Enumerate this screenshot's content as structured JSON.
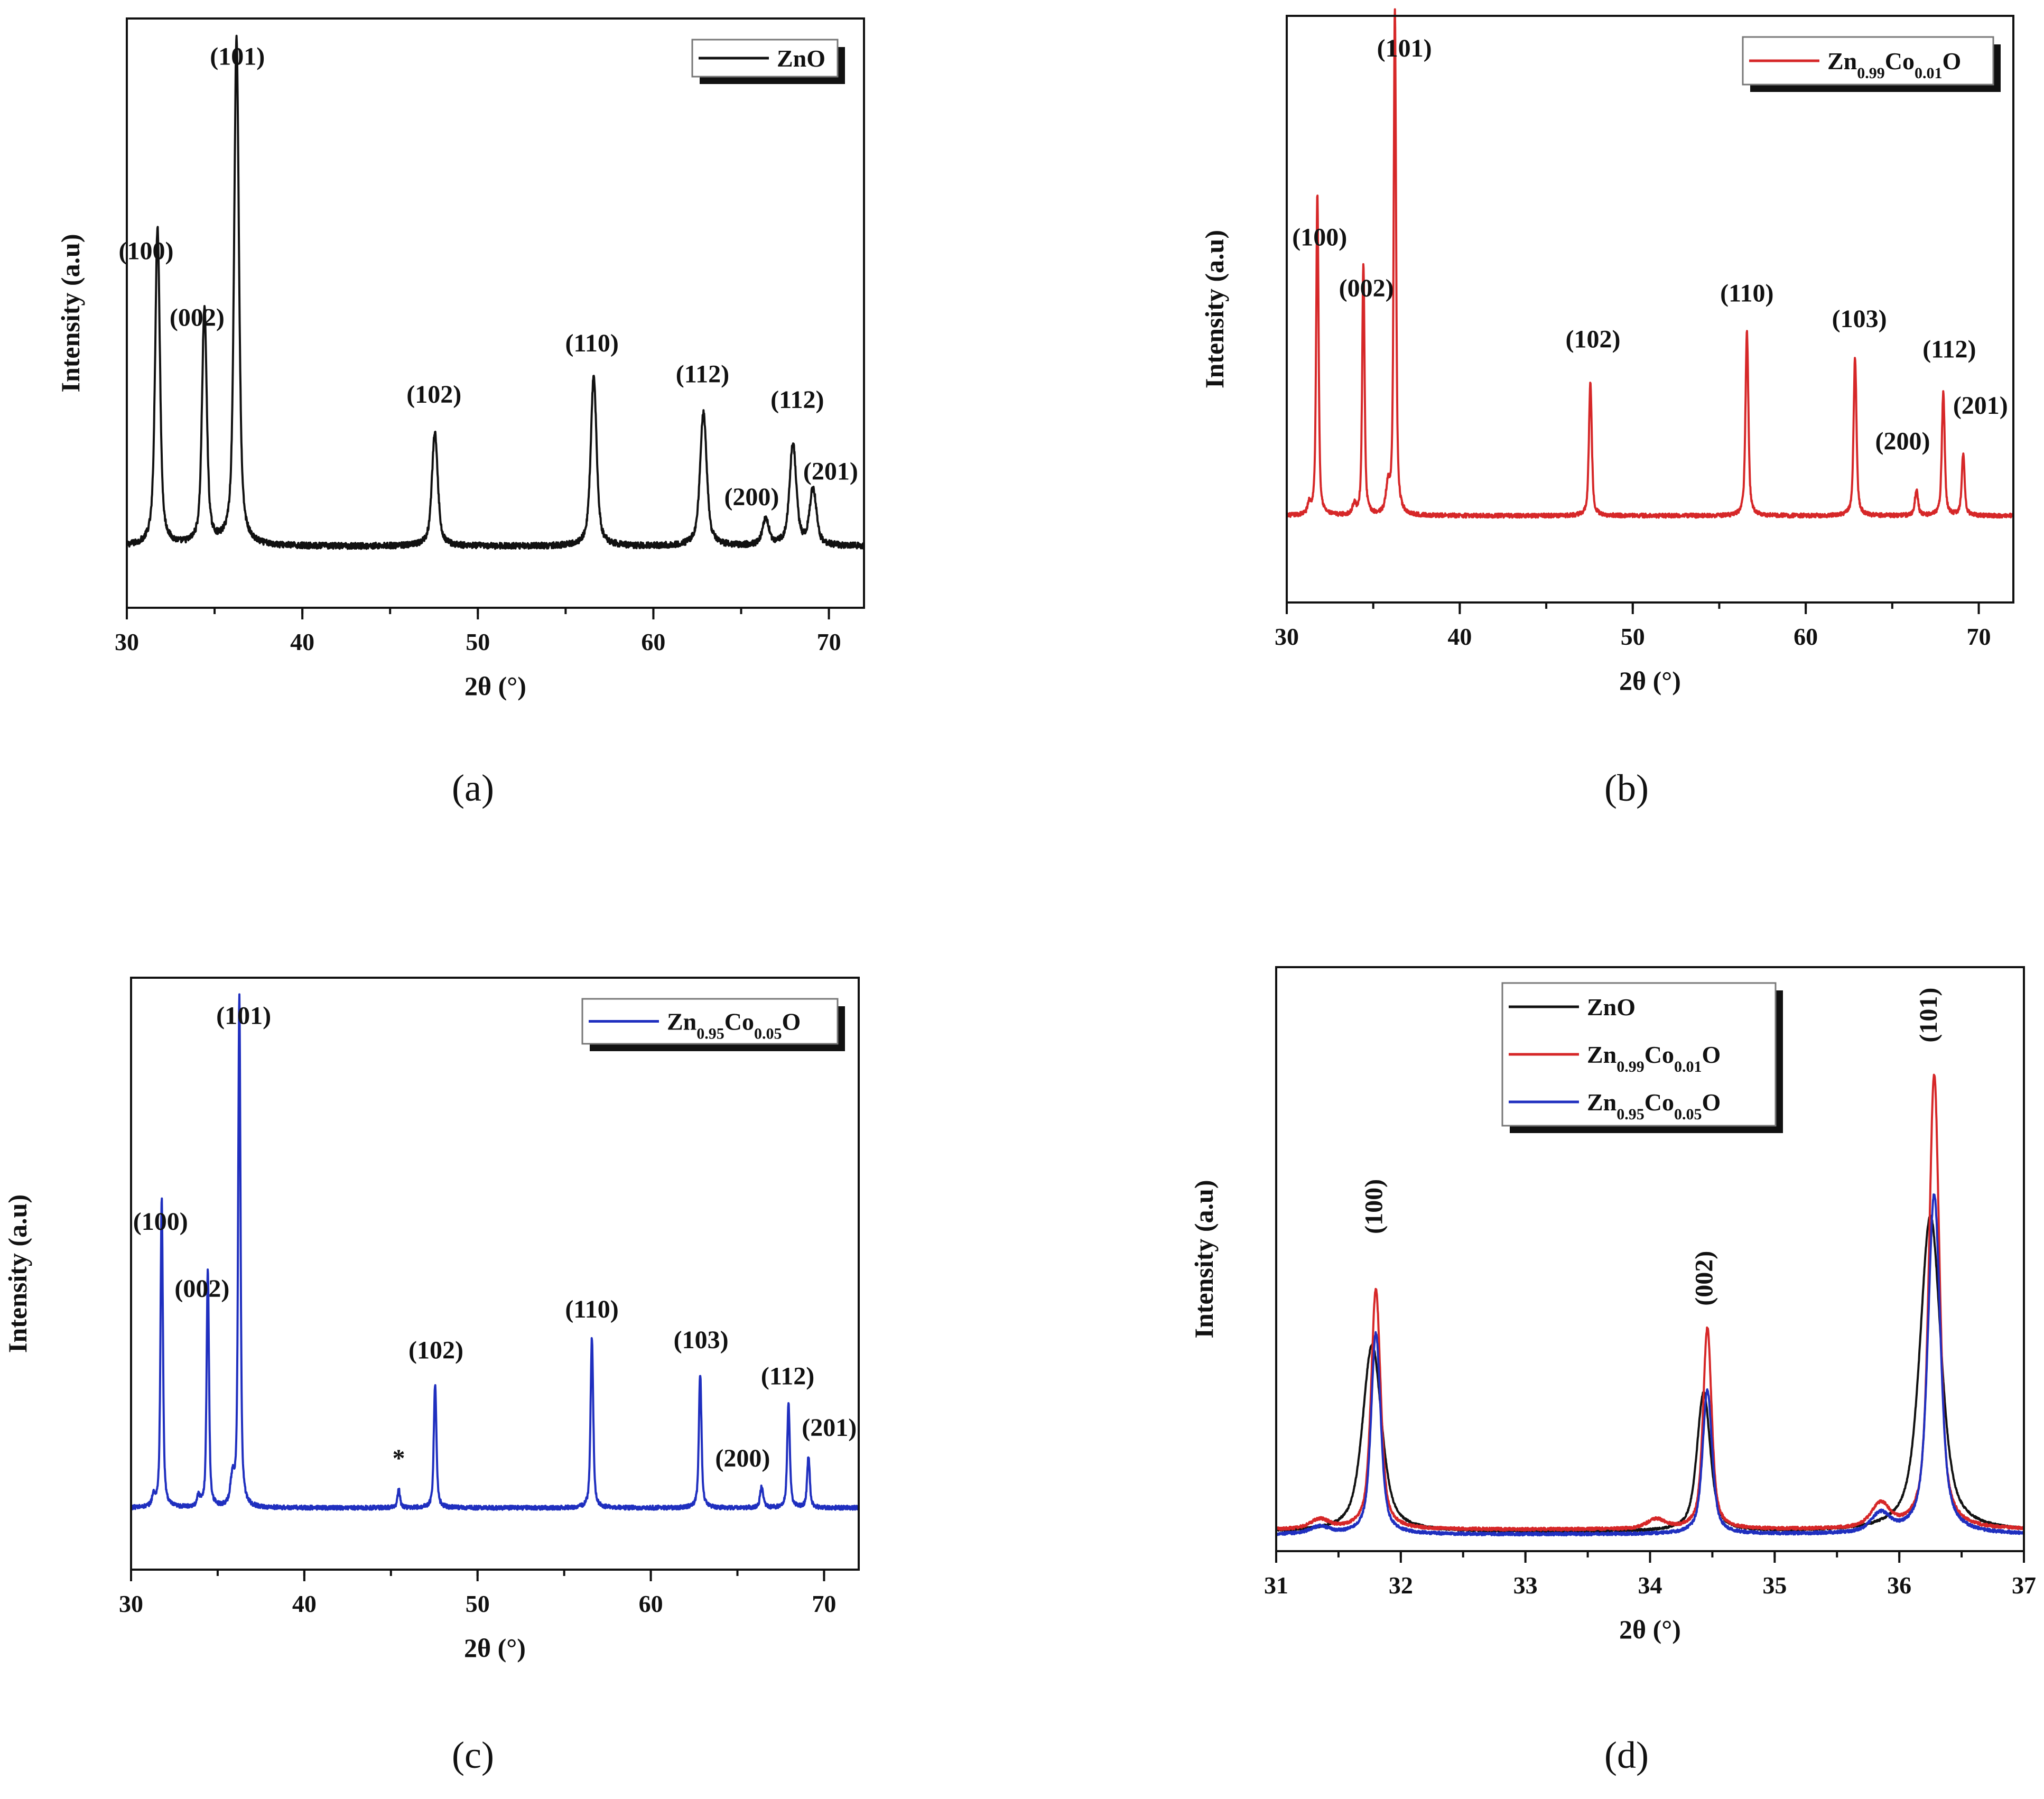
{
  "figure": {
    "background": "#ffffff",
    "colors": {
      "black": "#111111",
      "red": "#d62728",
      "blue": "#1f2fbf"
    }
  },
  "chart_data": [
    {
      "id": "a",
      "type": "line",
      "caption": "(a)",
      "xlabel": "2θ (°)",
      "ylabel": "Intensity (a.u)",
      "xlim": [
        30,
        72
      ],
      "ylim": [
        0,
        1.15
      ],
      "xticks": [
        30,
        40,
        50,
        60,
        70
      ],
      "legend": {
        "location": "top-right",
        "entries": [
          {
            "name": "ZnO",
            "color": "#111111"
          }
        ]
      },
      "series": [
        {
          "name": "ZnO",
          "color": "#111111",
          "baseline": 0.12,
          "noise": 0.006,
          "peaks": [
            {
              "x": 31.75,
              "h": 0.62,
              "w": 0.18
            },
            {
              "x": 34.42,
              "h": 0.46,
              "w": 0.18
            },
            {
              "x": 36.25,
              "h": 0.99,
              "w": 0.18
            },
            {
              "x": 47.55,
              "h": 0.22,
              "w": 0.22
            },
            {
              "x": 56.6,
              "h": 0.33,
              "w": 0.22
            },
            {
              "x": 62.85,
              "h": 0.26,
              "w": 0.25
            },
            {
              "x": 66.4,
              "h": 0.05,
              "w": 0.25
            },
            {
              "x": 67.95,
              "h": 0.2,
              "w": 0.25
            },
            {
              "x": 69.1,
              "h": 0.11,
              "w": 0.25
            }
          ]
        }
      ],
      "annotations": [
        {
          "text": "(101)",
          "x": 36.3,
          "y": 1.06
        },
        {
          "text": "(100)",
          "x": 31.1,
          "y": 0.68
        },
        {
          "text": "(002)",
          "x": 34.0,
          "y": 0.55
        },
        {
          "text": "(102)",
          "x": 47.5,
          "y": 0.4
        },
        {
          "text": "(110)",
          "x": 56.5,
          "y": 0.5
        },
        {
          "text": "(112)",
          "x": 62.8,
          "y": 0.44
        },
        {
          "text": "(112)",
          "x": 68.2,
          "y": 0.39
        },
        {
          "text": "(200)",
          "x": 65.6,
          "y": 0.2
        },
        {
          "text": "(201)",
          "x": 70.1,
          "y": 0.25
        }
      ]
    },
    {
      "id": "b",
      "type": "line",
      "caption": "(b)",
      "xlabel": "2θ (°)",
      "ylabel": "Intensity (a.u)",
      "xlim": [
        30,
        72
      ],
      "ylim": [
        0,
        1.15
      ],
      "xticks": [
        30,
        40,
        50,
        60,
        70
      ],
      "legend": {
        "location": "top-right",
        "entries": [
          {
            "name": "Zn0.99Co0.01O",
            "color": "#d62728"
          }
        ]
      },
      "series": [
        {
          "name": "Zn0.99Co0.01O",
          "color": "#d62728",
          "baseline": 0.17,
          "noise": 0.004,
          "peaks": [
            {
              "x": 31.3,
              "h": 0.02,
              "w": 0.12
            },
            {
              "x": 31.77,
              "h": 0.63,
              "w": 0.09
            },
            {
              "x": 33.9,
              "h": 0.02,
              "w": 0.12
            },
            {
              "x": 34.43,
              "h": 0.49,
              "w": 0.09
            },
            {
              "x": 35.85,
              "h": 0.05,
              "w": 0.15
            },
            {
              "x": 36.25,
              "h": 0.99,
              "w": 0.09
            },
            {
              "x": 47.55,
              "h": 0.26,
              "w": 0.11
            },
            {
              "x": 56.6,
              "h": 0.36,
              "w": 0.11
            },
            {
              "x": 62.85,
              "h": 0.31,
              "w": 0.11
            },
            {
              "x": 66.4,
              "h": 0.05,
              "w": 0.12
            },
            {
              "x": 67.95,
              "h": 0.24,
              "w": 0.11
            },
            {
              "x": 69.1,
              "h": 0.12,
              "w": 0.11
            }
          ]
        }
      ],
      "annotations": [
        {
          "text": "(101)",
          "x": 36.8,
          "y": 1.07
        },
        {
          "text": "(100)",
          "x": 31.9,
          "y": 0.7
        },
        {
          "text": "(002)",
          "x": 34.6,
          "y": 0.6
        },
        {
          "text": "(102)",
          "x": 47.7,
          "y": 0.5
        },
        {
          "text": "(110)",
          "x": 56.6,
          "y": 0.59
        },
        {
          "text": "(103)",
          "x": 63.1,
          "y": 0.54
        },
        {
          "text": "(112)",
          "x": 68.3,
          "y": 0.48
        },
        {
          "text": "(200)",
          "x": 65.6,
          "y": 0.3
        },
        {
          "text": "(201)",
          "x": 70.1,
          "y": 0.37
        }
      ]
    },
    {
      "id": "c",
      "type": "line",
      "caption": "(c)",
      "xlabel": "2θ (°)",
      "ylabel": "Intensity (a.u)",
      "xlim": [
        30,
        72
      ],
      "ylim": [
        0,
        1.15
      ],
      "xticks": [
        30,
        40,
        50,
        60,
        70
      ],
      "legend": {
        "location": "top-right",
        "entries": [
          {
            "name": "Zn0.95Co0.05O",
            "color": "#1f2fbf"
          }
        ]
      },
      "series": [
        {
          "name": "Zn0.95Co0.05O",
          "color": "#1f2fbf",
          "baseline": 0.12,
          "noise": 0.004,
          "peaks": [
            {
              "x": 31.3,
              "h": 0.02,
              "w": 0.12
            },
            {
              "x": 31.77,
              "h": 0.6,
              "w": 0.09
            },
            {
              "x": 33.9,
              "h": 0.02,
              "w": 0.12
            },
            {
              "x": 34.43,
              "h": 0.46,
              "w": 0.09
            },
            {
              "x": 35.85,
              "h": 0.05,
              "w": 0.15
            },
            {
              "x": 36.25,
              "h": 0.99,
              "w": 0.09
            },
            {
              "x": 45.45,
              "h": 0.035,
              "w": 0.1
            },
            {
              "x": 47.55,
              "h": 0.24,
              "w": 0.1
            },
            {
              "x": 56.6,
              "h": 0.33,
              "w": 0.1
            },
            {
              "x": 62.85,
              "h": 0.26,
              "w": 0.1
            },
            {
              "x": 66.4,
              "h": 0.04,
              "w": 0.12
            },
            {
              "x": 67.95,
              "h": 0.2,
              "w": 0.1
            },
            {
              "x": 69.1,
              "h": 0.1,
              "w": 0.1
            }
          ]
        }
      ],
      "annotations": [
        {
          "text": "(101)",
          "x": 36.5,
          "y": 1.06
        },
        {
          "text": "(100)",
          "x": 31.7,
          "y": 0.66
        },
        {
          "text": "(002)",
          "x": 34.1,
          "y": 0.53
        },
        {
          "text": "*",
          "x": 45.45,
          "y": 0.2
        },
        {
          "text": "(102)",
          "x": 47.6,
          "y": 0.41
        },
        {
          "text": "(110)",
          "x": 56.6,
          "y": 0.49
        },
        {
          "text": "(103)",
          "x": 62.9,
          "y": 0.43
        },
        {
          "text": "(112)",
          "x": 67.9,
          "y": 0.36
        },
        {
          "text": "(200)",
          "x": 65.3,
          "y": 0.2
        },
        {
          "text": "(201)",
          "x": 70.3,
          "y": 0.26
        }
      ]
    },
    {
      "id": "d",
      "type": "line",
      "caption": "(d)",
      "xlabel": "2θ (°)",
      "ylabel": "Intensity (a.u)",
      "xlim": [
        31,
        37
      ],
      "ylim": [
        0,
        1.22
      ],
      "xticks": [
        31,
        32,
        33,
        34,
        35,
        36,
        37
      ],
      "legend": {
        "location": "top-left",
        "entries": [
          {
            "name": "ZnO",
            "color": "#111111"
          },
          {
            "name": "Zn0.99Co0.01O",
            "color": "#d62728"
          },
          {
            "name": "Zn0.95Co0.05O",
            "color": "#1f2fbf"
          }
        ]
      },
      "series": [
        {
          "name": "ZnO",
          "color": "#111111",
          "baseline": 0.04,
          "noise": 0.002,
          "peaks": [
            {
              "x": 31.77,
              "h": 0.39,
              "w": 0.1
            },
            {
              "x": 34.43,
              "h": 0.29,
              "w": 0.07
            },
            {
              "x": 36.25,
              "h": 0.66,
              "w": 0.11
            }
          ]
        },
        {
          "name": "Zn0.99Co0.01O",
          "color": "#d62728",
          "baseline": 0.045,
          "noise": 0.003,
          "peaks": [
            {
              "x": 31.35,
              "h": 0.02,
              "w": 0.1
            },
            {
              "x": 31.8,
              "h": 0.5,
              "w": 0.05
            },
            {
              "x": 34.05,
              "h": 0.02,
              "w": 0.1
            },
            {
              "x": 34.46,
              "h": 0.42,
              "w": 0.045
            },
            {
              "x": 35.85,
              "h": 0.05,
              "w": 0.1
            },
            {
              "x": 36.28,
              "h": 0.95,
              "w": 0.055
            }
          ]
        },
        {
          "name": "Zn0.95Co0.05O",
          "color": "#1f2fbf",
          "baseline": 0.035,
          "noise": 0.003,
          "peaks": [
            {
              "x": 31.35,
              "h": 0.015,
              "w": 0.1
            },
            {
              "x": 31.8,
              "h": 0.42,
              "w": 0.05
            },
            {
              "x": 34.46,
              "h": 0.3,
              "w": 0.05
            },
            {
              "x": 35.85,
              "h": 0.04,
              "w": 0.1
            },
            {
              "x": 36.28,
              "h": 0.71,
              "w": 0.065
            }
          ]
        }
      ],
      "annotations": [
        {
          "text": "(100)",
          "x": 31.85,
          "y": 0.72,
          "rotate": true
        },
        {
          "text": "(002)",
          "x": 34.5,
          "y": 0.57,
          "rotate": true
        },
        {
          "text": "(101)",
          "x": 36.3,
          "y": 1.12,
          "rotate": true
        }
      ]
    }
  ]
}
